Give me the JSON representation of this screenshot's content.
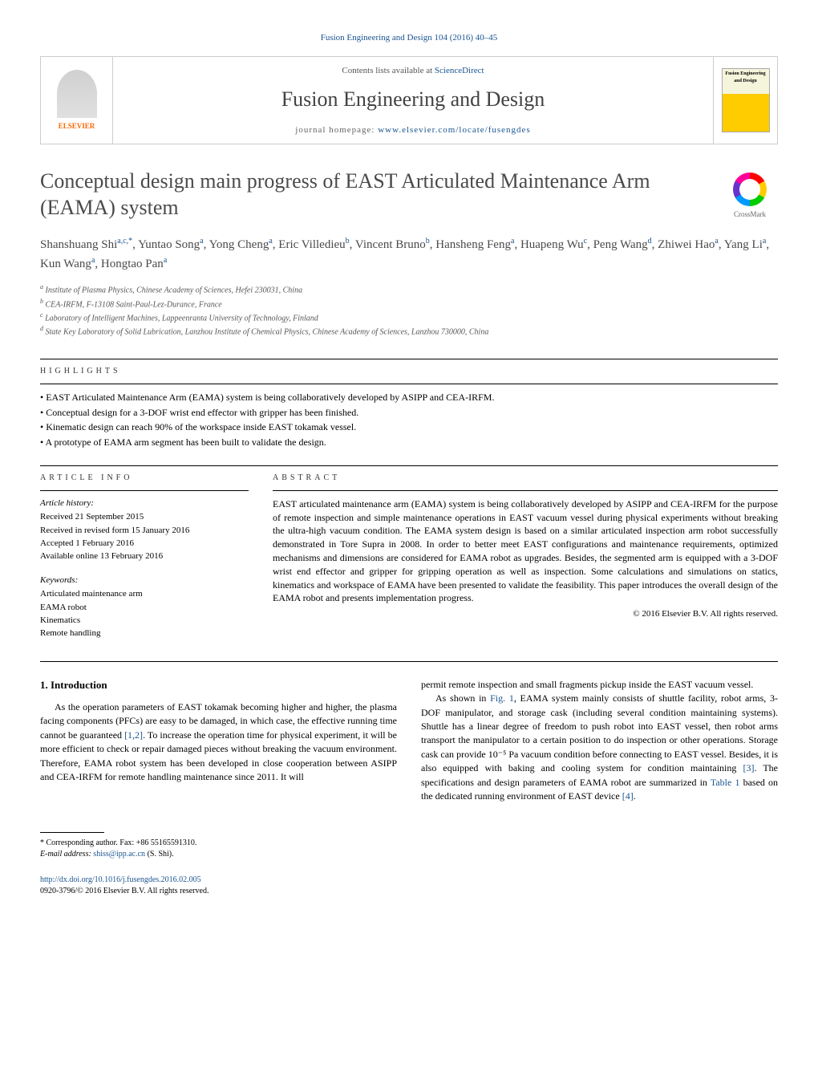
{
  "header": {
    "citation": "Fusion Engineering and Design 104 (2016) 40–45",
    "contents_prefix": "Contents lists available at ",
    "contents_link": "ScienceDirect",
    "journal_name": "Fusion Engineering and Design",
    "homepage_prefix": "journal homepage: ",
    "homepage_url": "www.elsevier.com/locate/fusengdes",
    "elsevier_label": "ELSEVIER",
    "cover_text": "Fusion Engineering and Design"
  },
  "crossmark": {
    "label": "CrossMark"
  },
  "title": "Conceptual design main progress of EAST Articulated Maintenance Arm (EAMA) system",
  "authors_html": "Shanshuang Shi<sup>a,c,*</sup>, Yuntao Song<sup>a</sup>, Yong Cheng<sup>a</sup>, Eric Villedieu<sup>b</sup>, Vincent Bruno<sup>b</sup>, Hansheng Feng<sup>a</sup>, Huapeng Wu<sup>c</sup>, Peng Wang<sup>d</sup>, Zhiwei Hao<sup>a</sup>, Yang Li<sup>a</sup>, Kun Wang<sup>a</sup>, Hongtao Pan<sup>a</sup>",
  "affiliations": [
    {
      "sup": "a",
      "text": "Institute of Plasma Physics, Chinese Academy of Sciences, Hefei 230031, China"
    },
    {
      "sup": "b",
      "text": "CEA-IRFM, F-13108 Saint-Paul-Lez-Durance, France"
    },
    {
      "sup": "c",
      "text": "Laboratory of Intelligent Machines, Lappeenranta University of Technology, Finland"
    },
    {
      "sup": "d",
      "text": "State Key Laboratory of Solid Lubrication, Lanzhou Institute of Chemical Physics, Chinese Academy of Sciences, Lanzhou 730000, China"
    }
  ],
  "highlights": {
    "label": "HIGHLIGHTS",
    "items": [
      "EAST Articulated Maintenance Arm (EAMA) system is being collaboratively developed by ASIPP and CEA-IRFM.",
      "Conceptual design for a 3-DOF wrist end effector with gripper has been finished.",
      "Kinematic design can reach 90% of the workspace inside EAST tokamak vessel.",
      "A prototype of EAMA arm segment has been built to validate the design."
    ]
  },
  "article_info": {
    "label": "ARTICLE INFO",
    "history_label": "Article history:",
    "history": [
      "Received 21 September 2015",
      "Received in revised form 15 January 2016",
      "Accepted 1 February 2016",
      "Available online 13 February 2016"
    ],
    "keywords_label": "Keywords:",
    "keywords": [
      "Articulated maintenance arm",
      "EAMA robot",
      "Kinematics",
      "Remote handling"
    ]
  },
  "abstract": {
    "label": "ABSTRACT",
    "text": "EAST articulated maintenance arm (EAMA) system is being collaboratively developed by ASIPP and CEA-IRFM for the purpose of remote inspection and simple maintenance operations in EAST vacuum vessel during physical experiments without breaking the ultra-high vacuum condition. The EAMA system design is based on a similar articulated inspection arm robot successfully demonstrated in Tore Supra in 2008. In order to better meet EAST configurations and maintenance requirements, optimized mechanisms and dimensions are considered for EAMA robot as upgrades. Besides, the segmented arm is equipped with a 3-DOF wrist end effector and gripper for gripping operation as well as inspection. Some calculations and simulations on statics, kinematics and workspace of EAMA have been presented to validate the feasibility. This paper introduces the overall design of the EAMA robot and presents implementation progress.",
    "copyright": "© 2016 Elsevier B.V. All rights reserved."
  },
  "body": {
    "intro_heading": "1. Introduction",
    "col1_p1": "As the operation parameters of EAST tokamak becoming higher and higher, the plasma facing components (PFCs) are easy to be damaged, in which case, the effective running time cannot be guaranteed [1,2]. To increase the operation time for physical experiment, it will be more efficient to check or repair damaged pieces without breaking the vacuum environment. Therefore, EAMA robot system has been developed in close cooperation between ASIPP and CEA-IRFM for remote handling maintenance since 2011. It will",
    "col2_p1": "permit remote inspection and small fragments pickup inside the EAST vacuum vessel.",
    "col2_p2": "As shown in Fig. 1, EAMA system mainly consists of shuttle facility, robot arms, 3-DOF manipulator, and storage cask (including several condition maintaining systems). Shuttle has a linear degree of freedom to push robot into EAST vessel, then robot arms transport the manipulator to a certain position to do inspection or other operations. Storage cask can provide 10⁻⁵ Pa vacuum condition before connecting to EAST vessel. Besides, it is also equipped with baking and cooling system for condition maintaining [3]. The specifications and design parameters of EAMA robot are summarized in Table 1 based on the dedicated running environment of EAST device [4]."
  },
  "footnote": {
    "corr": "* Corresponding author. Fax: +86 55165591310.",
    "email_label": "E-mail address: ",
    "email": "shiss@ipp.ac.cn",
    "email_suffix": " (S. Shi)."
  },
  "doi": {
    "url": "http://dx.doi.org/10.1016/j.fusengdes.2016.02.005",
    "issn": "0920-3796/© 2016 Elsevier B.V. All rights reserved."
  },
  "colors": {
    "link": "#1a5490",
    "text": "#000000",
    "heading": "#4a4a4a",
    "elsevier_orange": "#ff6600"
  }
}
